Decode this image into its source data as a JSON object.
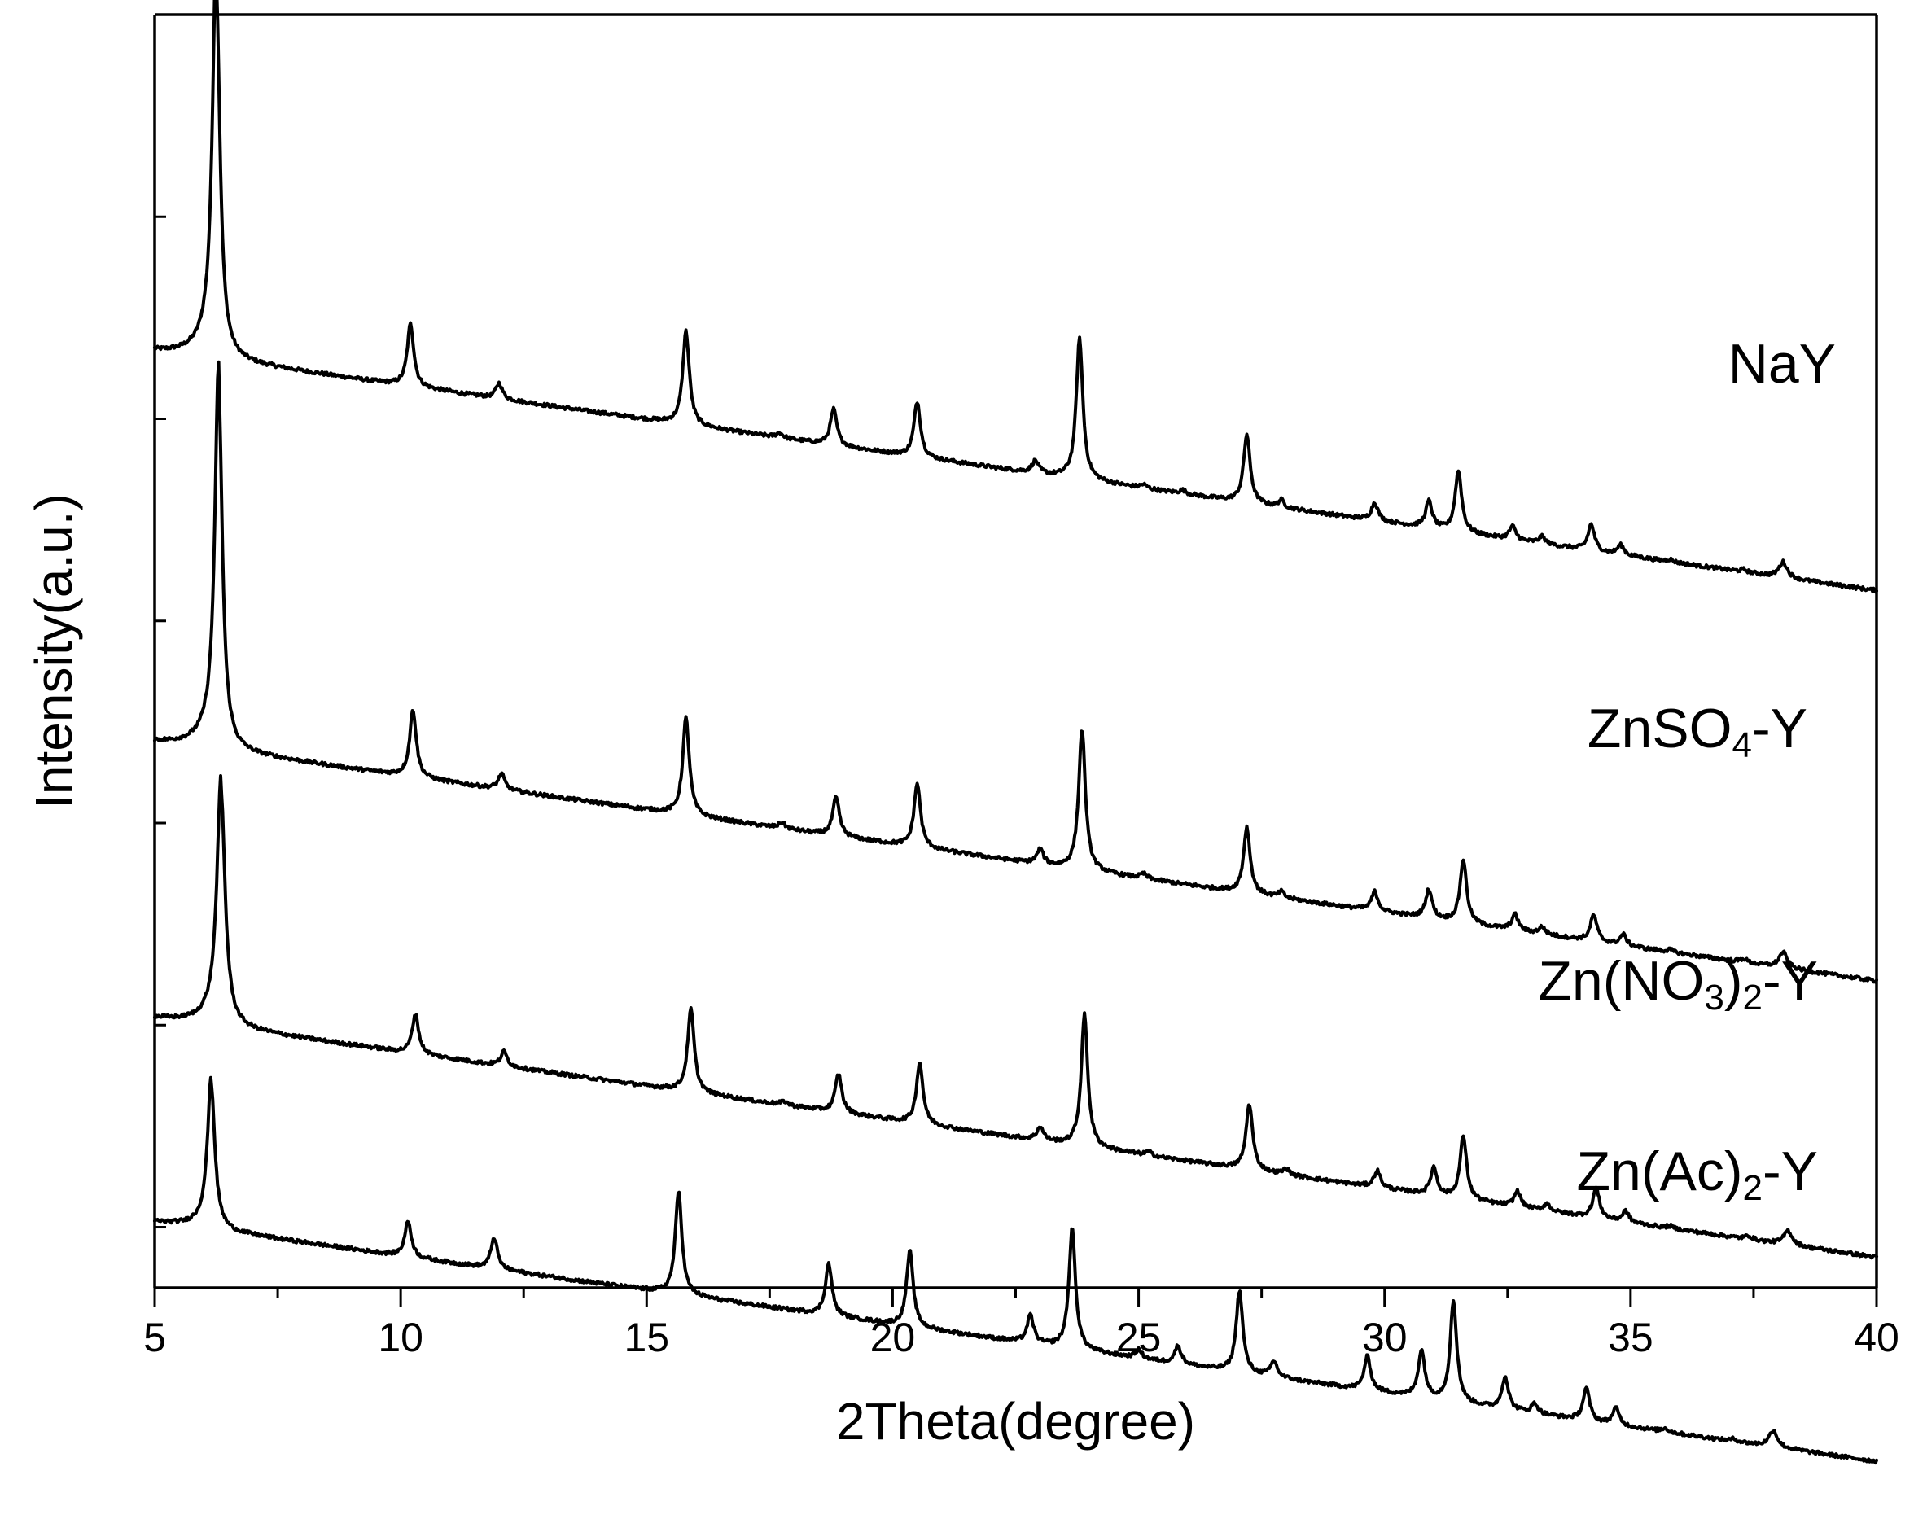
{
  "chart_data": {
    "type": "line",
    "title": "",
    "xlabel": "2Theta(degree)",
    "ylabel": "Intensity(a.u.)",
    "xlim": [
      5,
      40
    ],
    "x_major_ticks": [
      5,
      10,
      15,
      20,
      25,
      30,
      35,
      40
    ],
    "x_minor_step": 2.5,
    "y_tick_labels": "none",
    "y_unit": "arbitrary (stacked traces, normalized intensity with vertical offsets)",
    "ylim": [
      0,
      10.6
    ],
    "grid": false,
    "legend": "labels placed next to each trace on the right",
    "series": [
      {
        "name": "NaY",
        "label_parts": [
          {
            "text": "NaY",
            "sub": false
          }
        ],
        "offset": 7.8,
        "baseline_slope": -0.00114,
        "peaks": [
          {
            "x": 6.25,
            "h": 3.15,
            "w": 0.09
          },
          {
            "x": 10.2,
            "h": 0.52,
            "w": 0.08
          },
          {
            "x": 12.0,
            "h": 0.13,
            "w": 0.08
          },
          {
            "x": 15.8,
            "h": 0.78,
            "w": 0.08
          },
          {
            "x": 17.7,
            "h": 0.04,
            "w": 0.08
          },
          {
            "x": 18.8,
            "h": 0.3,
            "w": 0.08
          },
          {
            "x": 20.5,
            "h": 0.46,
            "w": 0.08
          },
          {
            "x": 22.9,
            "h": 0.1,
            "w": 0.08
          },
          {
            "x": 23.8,
            "h": 1.17,
            "w": 0.08
          },
          {
            "x": 25.1,
            "h": 0.03,
            "w": 0.08
          },
          {
            "x": 25.9,
            "h": 0.03,
            "w": 0.08
          },
          {
            "x": 27.2,
            "h": 0.57,
            "w": 0.08
          },
          {
            "x": 27.9,
            "h": 0.06,
            "w": 0.07
          },
          {
            "x": 29.8,
            "h": 0.15,
            "w": 0.08
          },
          {
            "x": 30.9,
            "h": 0.22,
            "w": 0.08
          },
          {
            "x": 31.5,
            "h": 0.51,
            "w": 0.08
          },
          {
            "x": 32.6,
            "h": 0.11,
            "w": 0.08
          },
          {
            "x": 33.2,
            "h": 0.06,
            "w": 0.08
          },
          {
            "x": 34.2,
            "h": 0.22,
            "w": 0.08
          },
          {
            "x": 34.8,
            "h": 0.08,
            "w": 0.08
          },
          {
            "x": 35.8,
            "h": 0.02,
            "w": 0.08
          },
          {
            "x": 37.3,
            "h": 0.02,
            "w": 0.08
          },
          {
            "x": 38.1,
            "h": 0.13,
            "w": 0.1
          }
        ]
      },
      {
        "name": "ZnSO4-Y",
        "label_parts": [
          {
            "text": "ZnSO",
            "sub": false
          },
          {
            "text": "4",
            "sub": true
          },
          {
            "text": "-Y",
            "sub": false
          }
        ],
        "offset": 4.55,
        "baseline_slope": -0.00114,
        "peaks": [
          {
            "x": 6.3,
            "h": 3.0,
            "w": 0.09
          },
          {
            "x": 10.25,
            "h": 0.56,
            "w": 0.08
          },
          {
            "x": 12.05,
            "h": 0.13,
            "w": 0.08
          },
          {
            "x": 15.8,
            "h": 0.81,
            "w": 0.08
          },
          {
            "x": 17.75,
            "h": 0.05,
            "w": 0.08
          },
          {
            "x": 18.85,
            "h": 0.32,
            "w": 0.08
          },
          {
            "x": 20.5,
            "h": 0.53,
            "w": 0.08
          },
          {
            "x": 23.0,
            "h": 0.12,
            "w": 0.08
          },
          {
            "x": 23.85,
            "h": 1.18,
            "w": 0.08
          },
          {
            "x": 25.1,
            "h": 0.04,
            "w": 0.08
          },
          {
            "x": 27.2,
            "h": 0.55,
            "w": 0.08
          },
          {
            "x": 27.9,
            "h": 0.05,
            "w": 0.07
          },
          {
            "x": 29.8,
            "h": 0.16,
            "w": 0.08
          },
          {
            "x": 30.9,
            "h": 0.24,
            "w": 0.08
          },
          {
            "x": 31.6,
            "h": 0.53,
            "w": 0.08
          },
          {
            "x": 32.65,
            "h": 0.13,
            "w": 0.08
          },
          {
            "x": 33.2,
            "h": 0.06,
            "w": 0.08
          },
          {
            "x": 34.25,
            "h": 0.22,
            "w": 0.08
          },
          {
            "x": 34.85,
            "h": 0.09,
            "w": 0.08
          },
          {
            "x": 35.8,
            "h": 0.02,
            "w": 0.08
          },
          {
            "x": 37.3,
            "h": 0.03,
            "w": 0.08
          },
          {
            "x": 38.1,
            "h": 0.13,
            "w": 0.1
          }
        ]
      },
      {
        "name": "Zn(NO3)2-Y",
        "label_parts": [
          {
            "text": "Zn(NO",
            "sub": false
          },
          {
            "text": "3",
            "sub": true
          },
          {
            "text": ")",
            "sub": false
          },
          {
            "text": "2",
            "sub": true
          },
          {
            "text": "-Y",
            "sub": false
          }
        ],
        "offset": 2.25,
        "baseline_slope": -0.00114,
        "peaks": [
          {
            "x": 6.35,
            "h": 1.95,
            "w": 0.1
          },
          {
            "x": 10.3,
            "h": 0.33,
            "w": 0.08
          },
          {
            "x": 12.1,
            "h": 0.12,
            "w": 0.08
          },
          {
            "x": 15.9,
            "h": 0.69,
            "w": 0.08
          },
          {
            "x": 17.8,
            "h": 0.03,
            "w": 0.08
          },
          {
            "x": 18.9,
            "h": 0.32,
            "w": 0.08
          },
          {
            "x": 20.55,
            "h": 0.51,
            "w": 0.08
          },
          {
            "x": 23.0,
            "h": 0.11,
            "w": 0.08
          },
          {
            "x": 23.9,
            "h": 1.1,
            "w": 0.08
          },
          {
            "x": 25.2,
            "h": 0.03,
            "w": 0.08
          },
          {
            "x": 27.25,
            "h": 0.55,
            "w": 0.08
          },
          {
            "x": 28.0,
            "h": 0.05,
            "w": 0.07
          },
          {
            "x": 29.85,
            "h": 0.14,
            "w": 0.08
          },
          {
            "x": 31.0,
            "h": 0.23,
            "w": 0.08
          },
          {
            "x": 31.6,
            "h": 0.53,
            "w": 0.08
          },
          {
            "x": 32.7,
            "h": 0.13,
            "w": 0.08
          },
          {
            "x": 33.3,
            "h": 0.06,
            "w": 0.08
          },
          {
            "x": 34.3,
            "h": 0.25,
            "w": 0.08
          },
          {
            "x": 34.9,
            "h": 0.09,
            "w": 0.08
          },
          {
            "x": 35.8,
            "h": 0.02,
            "w": 0.08
          },
          {
            "x": 37.4,
            "h": 0.03,
            "w": 0.08
          },
          {
            "x": 38.2,
            "h": 0.12,
            "w": 0.1
          }
        ]
      },
      {
        "name": "Zn(Ac)2-Y",
        "label_parts": [
          {
            "text": "Zn(Ac)",
            "sub": false
          },
          {
            "text": "2",
            "sub": true
          },
          {
            "text": "-Y",
            "sub": false
          }
        ],
        "offset": 0.55,
        "baseline_slope": -0.00114,
        "peaks": [
          {
            "x": 6.15,
            "h": 1.2,
            "w": 0.09
          },
          {
            "x": 10.15,
            "h": 0.3,
            "w": 0.08
          },
          {
            "x": 11.9,
            "h": 0.26,
            "w": 0.08
          },
          {
            "x": 15.65,
            "h": 0.86,
            "w": 0.08
          },
          {
            "x": 18.7,
            "h": 0.43,
            "w": 0.08
          },
          {
            "x": 20.35,
            "h": 0.63,
            "w": 0.08
          },
          {
            "x": 22.8,
            "h": 0.23,
            "w": 0.08
          },
          {
            "x": 23.65,
            "h": 1.0,
            "w": 0.08
          },
          {
            "x": 25.0,
            "h": 0.07,
            "w": 0.08
          },
          {
            "x": 25.8,
            "h": 0.15,
            "w": 0.08
          },
          {
            "x": 27.05,
            "h": 0.68,
            "w": 0.08
          },
          {
            "x": 27.75,
            "h": 0.13,
            "w": 0.08
          },
          {
            "x": 29.65,
            "h": 0.28,
            "w": 0.08
          },
          {
            "x": 30.75,
            "h": 0.39,
            "w": 0.08
          },
          {
            "x": 31.4,
            "h": 0.84,
            "w": 0.08
          },
          {
            "x": 32.45,
            "h": 0.27,
            "w": 0.08
          },
          {
            "x": 33.05,
            "h": 0.08,
            "w": 0.08
          },
          {
            "x": 34.1,
            "h": 0.27,
            "w": 0.08
          },
          {
            "x": 34.7,
            "h": 0.14,
            "w": 0.08
          },
          {
            "x": 35.7,
            "h": 0.03,
            "w": 0.08
          },
          {
            "x": 37.1,
            "h": 0.02,
            "w": 0.08
          },
          {
            "x": 37.9,
            "h": 0.14,
            "w": 0.1
          }
        ]
      }
    ]
  }
}
